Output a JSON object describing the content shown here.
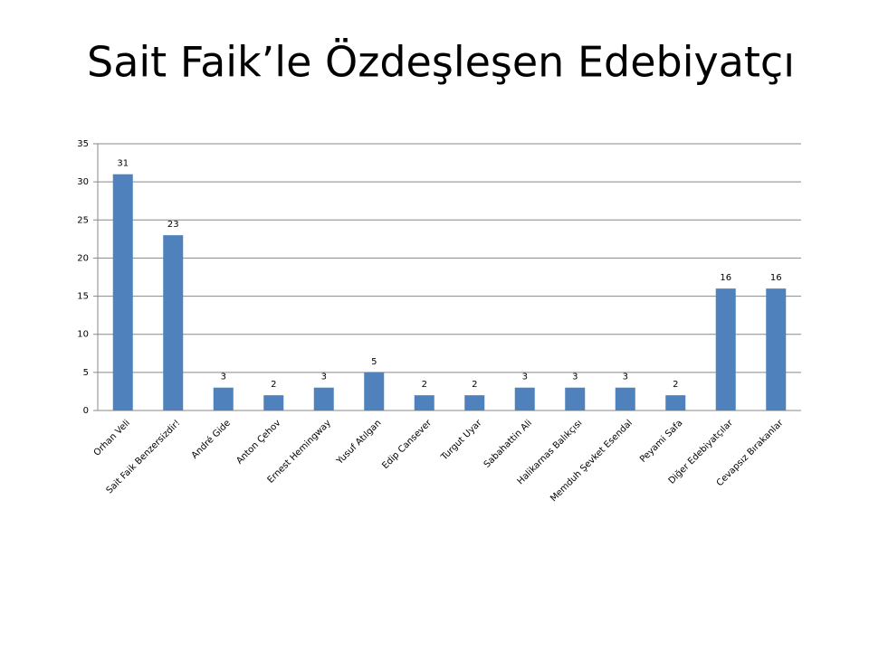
{
  "chart_data": {
    "type": "bar",
    "title": "Sait Faik’le Özdeşleşen Edebiyatçı",
    "categories": [
      "Orhan Veli",
      "Sait Faik Benzersizdir!",
      "André Gide",
      "Anton Çehov",
      "Ernest Hemingway",
      "Yusuf Atılgan",
      "Edip Cansever",
      "Turgut Uyar",
      "Sabahattin Ali",
      "Halikarnas Balıkçısı",
      "Memduh Şevket Esendal",
      "Peyami Safa",
      "Diğer Edebiyatçılar",
      "Cevapsız Bırakanlar"
    ],
    "values": [
      31,
      23,
      3,
      2,
      3,
      5,
      2,
      2,
      3,
      3,
      3,
      2,
      16,
      16
    ],
    "color": "#4f81bd",
    "ylim": [
      0,
      35
    ],
    "yticks": [
      0,
      5,
      10,
      15,
      20,
      25,
      30,
      35
    ],
    "grid": true
  }
}
